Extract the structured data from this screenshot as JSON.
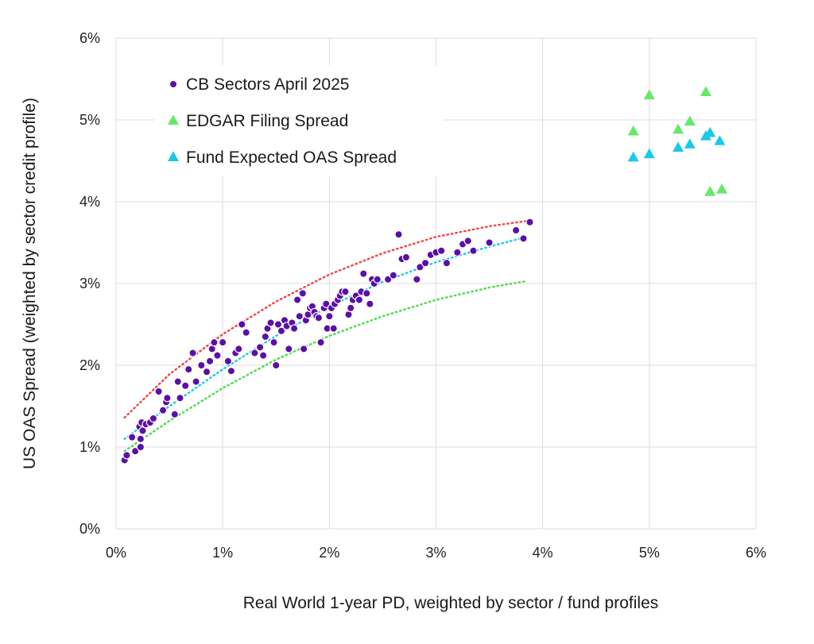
{
  "chart_data": {
    "type": "scatter",
    "title": "",
    "xlabel": "Real World 1-year PD, weighted by sector / fund profiles",
    "ylabel": "US OAS Spread (weighted by sector credit profile)",
    "xlim": [
      0,
      6
    ],
    "ylim": [
      0,
      6
    ],
    "x_ticks": [
      0,
      1,
      2,
      3,
      4,
      5,
      6
    ],
    "y_ticks": [
      0,
      1,
      2,
      3,
      4,
      5,
      6
    ],
    "x_tick_labels": [
      "0%",
      "1%",
      "2%",
      "3%",
      "4%",
      "5%",
      "6%"
    ],
    "y_tick_labels": [
      "0%",
      "1%",
      "2%",
      "3%",
      "4%",
      "5%",
      "6%"
    ],
    "grid": true,
    "legend_position": "top-left",
    "legend": [
      {
        "label": "CB Sectors April 2025",
        "marker": "circle",
        "color": "#5b0fa8"
      },
      {
        "label": "EDGAR Filing Spread",
        "marker": "triangle",
        "color": "#66e86a"
      },
      {
        "label": "Fund Expected OAS Spread",
        "marker": "triangle",
        "color": "#19c9e8"
      }
    ],
    "series": [
      {
        "name": "CB Sectors April 2025",
        "marker": "circle",
        "color": "#5b0fa8",
        "points": [
          [
            0.08,
            0.84
          ],
          [
            0.1,
            0.9
          ],
          [
            0.15,
            1.12
          ],
          [
            0.18,
            0.95
          ],
          [
            0.23,
            1.0
          ],
          [
            0.23,
            1.1
          ],
          [
            0.22,
            1.25
          ],
          [
            0.24,
            1.3
          ],
          [
            0.25,
            1.2
          ],
          [
            0.28,
            1.28
          ],
          [
            0.32,
            1.3
          ],
          [
            0.35,
            1.35
          ],
          [
            0.4,
            1.68
          ],
          [
            0.44,
            1.45
          ],
          [
            0.47,
            1.55
          ],
          [
            0.48,
            1.6
          ],
          [
            0.55,
            1.4
          ],
          [
            0.58,
            1.8
          ],
          [
            0.6,
            1.6
          ],
          [
            0.65,
            1.75
          ],
          [
            0.68,
            1.95
          ],
          [
            0.72,
            2.15
          ],
          [
            0.75,
            1.8
          ],
          [
            0.8,
            2.0
          ],
          [
            0.85,
            1.92
          ],
          [
            0.88,
            2.05
          ],
          [
            0.9,
            2.2
          ],
          [
            0.92,
            2.28
          ],
          [
            0.95,
            2.12
          ],
          [
            1.0,
            2.28
          ],
          [
            1.05,
            2.05
          ],
          [
            1.08,
            1.93
          ],
          [
            1.12,
            2.15
          ],
          [
            1.15,
            2.2
          ],
          [
            1.18,
            2.5
          ],
          [
            1.22,
            2.4
          ],
          [
            1.3,
            2.15
          ],
          [
            1.35,
            2.22
          ],
          [
            1.38,
            2.12
          ],
          [
            1.4,
            2.35
          ],
          [
            1.42,
            2.45
          ],
          [
            1.45,
            2.52
          ],
          [
            1.48,
            2.28
          ],
          [
            1.5,
            2.0
          ],
          [
            1.52,
            2.5
          ],
          [
            1.55,
            2.42
          ],
          [
            1.58,
            2.55
          ],
          [
            1.6,
            2.48
          ],
          [
            1.62,
            2.2
          ],
          [
            1.65,
            2.52
          ],
          [
            1.67,
            2.45
          ],
          [
            1.7,
            2.8
          ],
          [
            1.72,
            2.6
          ],
          [
            1.75,
            2.88
          ],
          [
            1.76,
            2.2
          ],
          [
            1.78,
            2.55
          ],
          [
            1.8,
            2.62
          ],
          [
            1.82,
            2.7
          ],
          [
            1.84,
            2.72
          ],
          [
            1.86,
            2.65
          ],
          [
            1.88,
            2.6
          ],
          [
            1.9,
            2.58
          ],
          [
            1.92,
            2.28
          ],
          [
            1.95,
            2.7
          ],
          [
            1.97,
            2.75
          ],
          [
            1.98,
            2.45
          ],
          [
            2.0,
            2.6
          ],
          [
            2.02,
            2.7
          ],
          [
            2.04,
            2.45
          ],
          [
            2.05,
            2.75
          ],
          [
            2.08,
            2.8
          ],
          [
            2.1,
            2.85
          ],
          [
            2.12,
            2.9
          ],
          [
            2.15,
            2.9
          ],
          [
            2.18,
            2.62
          ],
          [
            2.2,
            2.7
          ],
          [
            2.22,
            2.8
          ],
          [
            2.25,
            2.85
          ],
          [
            2.28,
            2.8
          ],
          [
            2.3,
            2.9
          ],
          [
            2.32,
            3.12
          ],
          [
            2.35,
            2.88
          ],
          [
            2.38,
            2.75
          ],
          [
            2.4,
            3.05
          ],
          [
            2.42,
            3.0
          ],
          [
            2.45,
            3.05
          ],
          [
            2.55,
            3.05
          ],
          [
            2.6,
            3.1
          ],
          [
            2.65,
            3.6
          ],
          [
            2.68,
            3.3
          ],
          [
            2.72,
            3.32
          ],
          [
            2.82,
            3.05
          ],
          [
            2.85,
            3.2
          ],
          [
            2.9,
            3.25
          ],
          [
            2.95,
            3.35
          ],
          [
            3.0,
            3.38
          ],
          [
            3.05,
            3.4
          ],
          [
            3.1,
            3.25
          ],
          [
            3.2,
            3.38
          ],
          [
            3.25,
            3.48
          ],
          [
            3.3,
            3.52
          ],
          [
            3.35,
            3.4
          ],
          [
            3.5,
            3.5
          ],
          [
            3.75,
            3.65
          ],
          [
            3.82,
            3.55
          ],
          [
            3.88,
            3.75
          ]
        ]
      },
      {
        "name": "EDGAR Filing Spread",
        "marker": "triangle",
        "color": "#66e86a",
        "points": [
          [
            4.85,
            4.86
          ],
          [
            5.0,
            5.3
          ],
          [
            5.27,
            4.88
          ],
          [
            5.38,
            4.98
          ],
          [
            5.53,
            5.34
          ],
          [
            5.57,
            4.12
          ],
          [
            5.68,
            4.15
          ]
        ]
      },
      {
        "name": "Fund Expected OAS Spread",
        "marker": "triangle",
        "color": "#19c9e8",
        "points": [
          [
            4.85,
            4.54
          ],
          [
            5.0,
            4.58
          ],
          [
            5.27,
            4.66
          ],
          [
            5.38,
            4.7
          ],
          [
            5.53,
            4.8
          ],
          [
            5.57,
            4.84
          ],
          [
            5.66,
            4.74
          ]
        ]
      }
    ],
    "trendlines": [
      {
        "name": "upper",
        "color": "#ef4444",
        "x_range": [
          0.08,
          3.88
        ],
        "points": [
          [
            0.08,
            1.36
          ],
          [
            0.5,
            1.89
          ],
          [
            1.0,
            2.38
          ],
          [
            1.5,
            2.78
          ],
          [
            2.0,
            3.11
          ],
          [
            2.5,
            3.37
          ],
          [
            3.0,
            3.57
          ],
          [
            3.5,
            3.7
          ],
          [
            3.88,
            3.77
          ]
        ]
      },
      {
        "name": "middle",
        "color": "#22c8e6",
        "x_range": [
          0.08,
          3.85
        ],
        "points": [
          [
            0.08,
            1.1
          ],
          [
            0.5,
            1.5
          ],
          [
            1.0,
            1.95
          ],
          [
            1.5,
            2.36
          ],
          [
            2.0,
            2.72
          ],
          [
            2.5,
            3.02
          ],
          [
            3.0,
            3.26
          ],
          [
            3.5,
            3.45
          ],
          [
            3.85,
            3.57
          ]
        ]
      },
      {
        "name": "lower",
        "color": "#4ade4a",
        "x_range": [
          0.08,
          3.85
        ],
        "points": [
          [
            0.08,
            0.95
          ],
          [
            0.5,
            1.32
          ],
          [
            1.0,
            1.72
          ],
          [
            1.5,
            2.07
          ],
          [
            2.0,
            2.36
          ],
          [
            2.5,
            2.6
          ],
          [
            3.0,
            2.8
          ],
          [
            3.5,
            2.95
          ],
          [
            3.85,
            3.03
          ]
        ]
      }
    ]
  }
}
